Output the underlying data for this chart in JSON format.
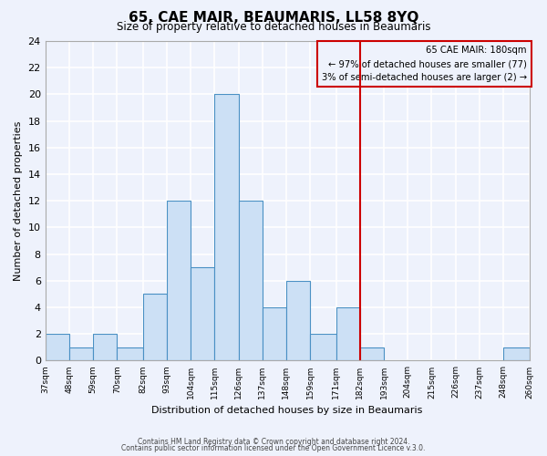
{
  "title": "65, CAE MAIR, BEAUMARIS, LL58 8YQ",
  "subtitle": "Size of property relative to detached houses in Beaumaris",
  "xlabel": "Distribution of detached houses by size in Beaumaris",
  "ylabel": "Number of detached properties",
  "bins": [
    37,
    48,
    59,
    70,
    82,
    93,
    104,
    115,
    126,
    137,
    148,
    159,
    171,
    182,
    193,
    204,
    215,
    226,
    237,
    248,
    260
  ],
  "bin_labels": [
    "37sqm",
    "48sqm",
    "59sqm",
    "70sqm",
    "82sqm",
    "93sqm",
    "104sqm",
    "115sqm",
    "126sqm",
    "137sqm",
    "148sqm",
    "159sqm",
    "171sqm",
    "182sqm",
    "193sqm",
    "204sqm",
    "215sqm",
    "226sqm",
    "237sqm",
    "248sqm",
    "260sqm"
  ],
  "counts": [
    2,
    1,
    2,
    1,
    5,
    12,
    7,
    20,
    12,
    4,
    6,
    2,
    4,
    1,
    0,
    0,
    0,
    0,
    0,
    1
  ],
  "bar_color": "#cce0f5",
  "bar_edge_color": "#4a90c4",
  "vline_x": 182,
  "vline_color": "#cc0000",
  "annotation_title": "65 CAE MAIR: 180sqm",
  "annotation_line1": "← 97% of detached houses are smaller (77)",
  "annotation_line2": "3% of semi-detached houses are larger (2) →",
  "annotation_box_edge_color": "#cc0000",
  "ylim": [
    0,
    24
  ],
  "yticks": [
    0,
    2,
    4,
    6,
    8,
    10,
    12,
    14,
    16,
    18,
    20,
    22,
    24
  ],
  "bg_color": "#eef2fc",
  "grid_color": "#ffffff",
  "footer1": "Contains HM Land Registry data © Crown copyright and database right 2024.",
  "footer2": "Contains public sector information licensed under the Open Government Licence v.3.0."
}
